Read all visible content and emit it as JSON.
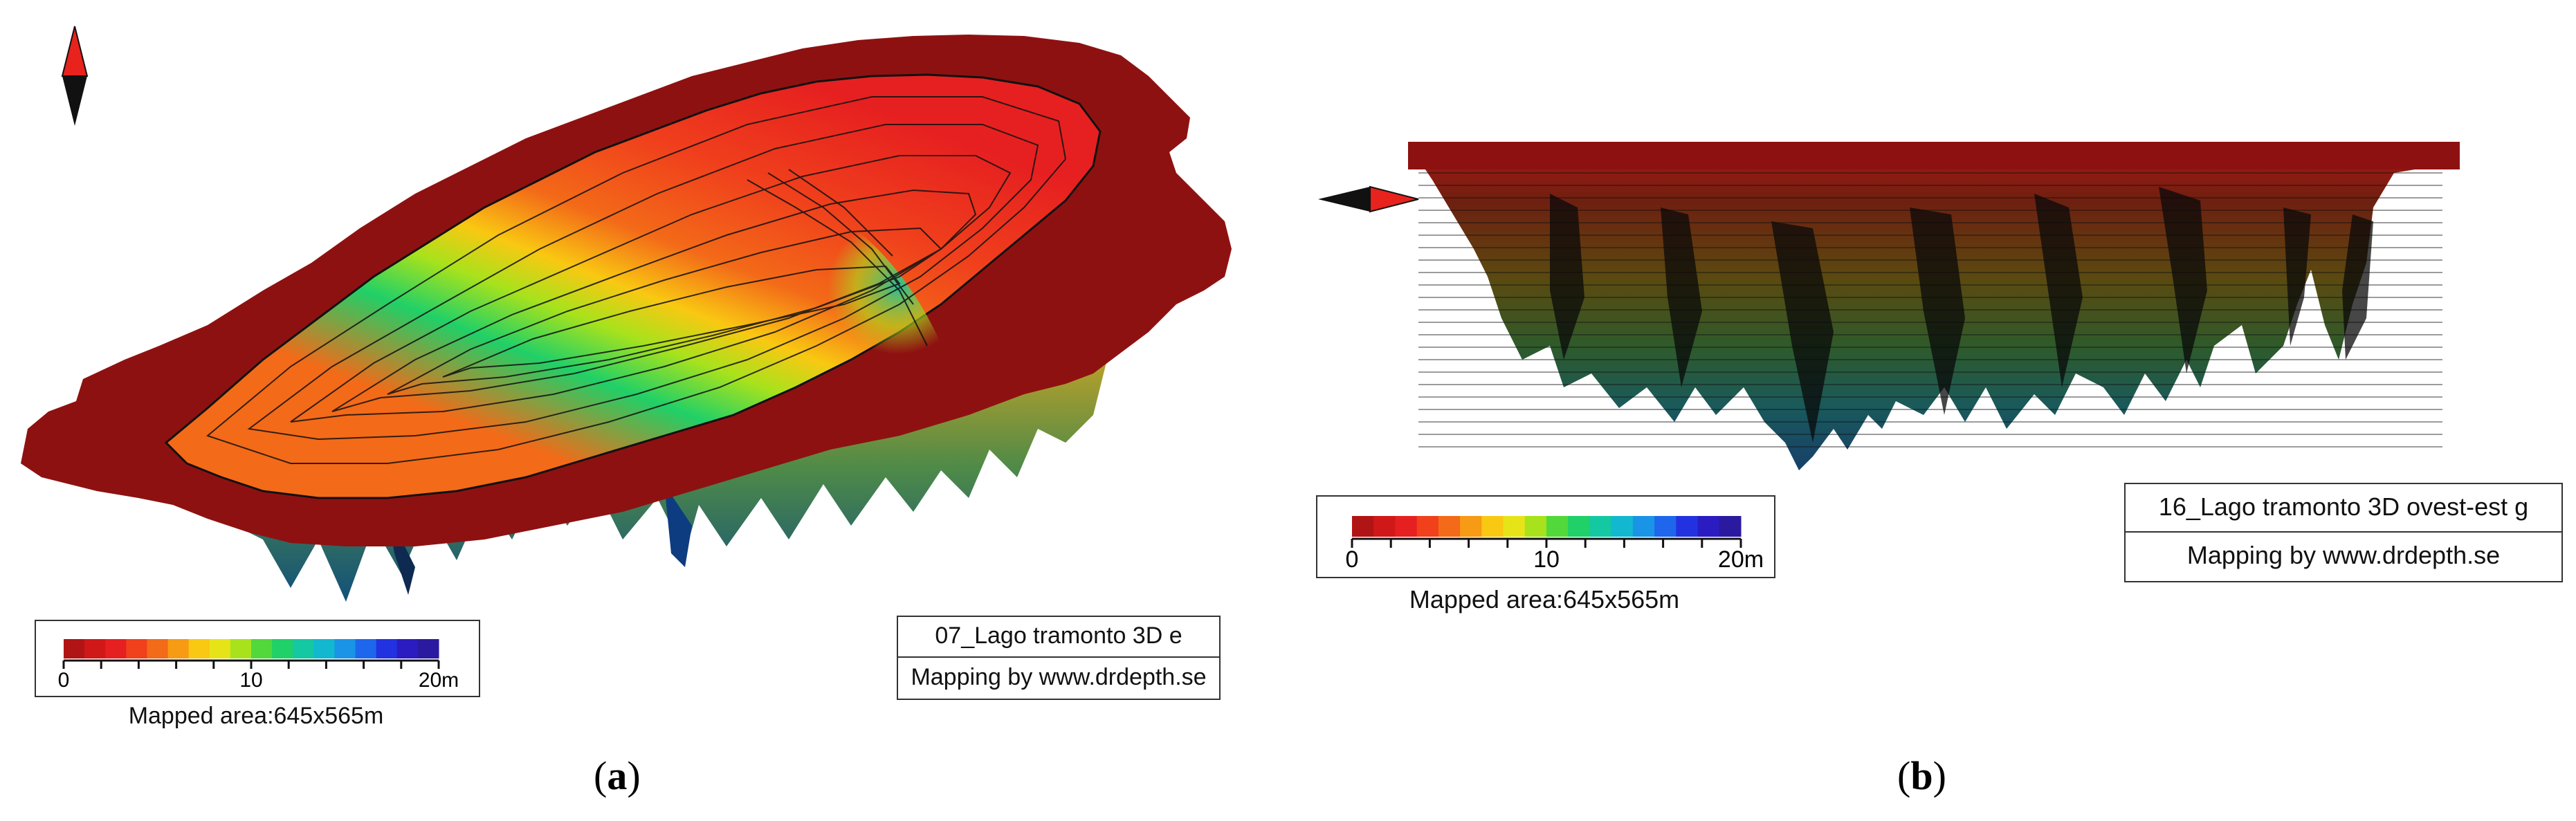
{
  "panel_a": {
    "legend": {
      "ticks": [
        "0",
        "10",
        "20m"
      ],
      "area_label": "Mapped area:645x565m"
    },
    "info": {
      "title": "07_Lago tramonto 3D e",
      "credit": "Mapping by www.drdepth.se"
    },
    "caption": {
      "open": "(",
      "letter": "a",
      "close": ")"
    }
  },
  "panel_b": {
    "legend": {
      "ticks": [
        "0",
        "10",
        "20m"
      ],
      "area_label": "Mapped area:645x565m"
    },
    "info": {
      "title": "16_Lago tramonto 3D ovest-est g",
      "credit": "Mapping by www.drdepth.se"
    },
    "caption": {
      "open": "(",
      "letter": "b",
      "close": ")"
    }
  },
  "colors": {
    "depth_scale": [
      "#b11414",
      "#d11818",
      "#e62020",
      "#f0401c",
      "#f36a18",
      "#f79a14",
      "#f9c812",
      "#e6e418",
      "#a8e21c",
      "#52d83a",
      "#20d068",
      "#14c8a2",
      "#12b8d0",
      "#1a94e6",
      "#1e66ec",
      "#2232e0",
      "#2a1cc0",
      "#2a1aa0"
    ],
    "rim": "#8e1111",
    "north_arrow_red": "#e8221c",
    "north_arrow_black": "#111111"
  }
}
